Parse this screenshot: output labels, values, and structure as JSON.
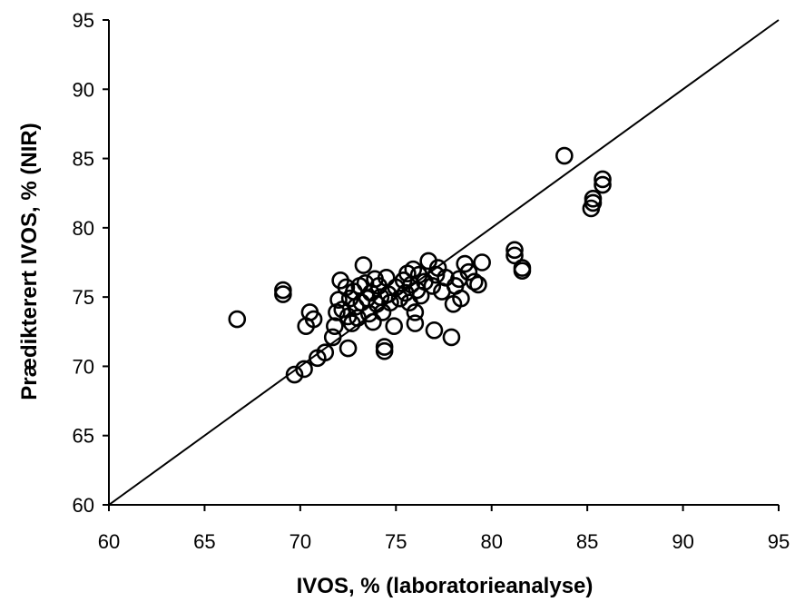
{
  "chart_data": {
    "type": "scatter",
    "title": "",
    "xlabel": "IVOS, % (laboratorieanalyse)",
    "ylabel": "Prædikterert IVOS, % (NIR)",
    "xlim": [
      60,
      95
    ],
    "ylim": [
      60,
      95
    ],
    "xticks": [
      "60",
      "65",
      "70",
      "75",
      "80",
      "85",
      "90",
      "95"
    ],
    "yticks": [
      "60",
      "65",
      "70",
      "75",
      "80",
      "85",
      "90",
      "95"
    ],
    "grid": false,
    "legend": "none",
    "reference_line": {
      "from": [
        60,
        60
      ],
      "to": [
        95,
        95
      ]
    },
    "marker": "hollow-circle",
    "colors": {
      "marker": "#000000",
      "line": "#000000",
      "axis": "#000000"
    },
    "points": [
      [
        66.7,
        73.4
      ],
      [
        69.1,
        75.5
      ],
      [
        69.1,
        75.2
      ],
      [
        69.7,
        69.4
      ],
      [
        70.2,
        69.8
      ],
      [
        70.3,
        72.9
      ],
      [
        70.5,
        73.9
      ],
      [
        70.7,
        73.4
      ],
      [
        70.9,
        70.6
      ],
      [
        71.3,
        71.0
      ],
      [
        71.7,
        72.1
      ],
      [
        71.8,
        72.9
      ],
      [
        71.9,
        73.9
      ],
      [
        72.0,
        74.8
      ],
      [
        72.1,
        76.2
      ],
      [
        72.2,
        74.1
      ],
      [
        72.4,
        75.7
      ],
      [
        72.5,
        71.3
      ],
      [
        72.5,
        73.6
      ],
      [
        72.6,
        74.9
      ],
      [
        72.7,
        73.1
      ],
      [
        72.8,
        75.4
      ],
      [
        72.9,
        74.3
      ],
      [
        73.0,
        73.5
      ],
      [
        73.1,
        75.8
      ],
      [
        73.2,
        74.6
      ],
      [
        73.3,
        77.3
      ],
      [
        73.4,
        76.0
      ],
      [
        73.5,
        74.9
      ],
      [
        73.6,
        73.8
      ],
      [
        73.7,
        75.3
      ],
      [
        73.8,
        73.2
      ],
      [
        73.9,
        76.3
      ],
      [
        74.0,
        74.5
      ],
      [
        74.1,
        75.8
      ],
      [
        74.2,
        75.0
      ],
      [
        74.3,
        73.9
      ],
      [
        74.4,
        71.4
      ],
      [
        74.4,
        71.1
      ],
      [
        74.5,
        76.4
      ],
      [
        74.6,
        75.2
      ],
      [
        74.7,
        74.6
      ],
      [
        74.9,
        72.9
      ],
      [
        75.0,
        75.7
      ],
      [
        75.2,
        74.9
      ],
      [
        75.4,
        76.2
      ],
      [
        75.5,
        75.3
      ],
      [
        75.6,
        76.7
      ],
      [
        75.7,
        74.6
      ],
      [
        75.8,
        75.9
      ],
      [
        75.9,
        77.0
      ],
      [
        76.0,
        73.9
      ],
      [
        76.0,
        73.1
      ],
      [
        76.1,
        75.5
      ],
      [
        76.2,
        76.6
      ],
      [
        76.3,
        75.1
      ],
      [
        76.5,
        76.1
      ],
      [
        76.7,
        77.6
      ],
      [
        76.9,
        75.8
      ],
      [
        77.0,
        72.6
      ],
      [
        77.1,
        76.6
      ],
      [
        77.2,
        77.1
      ],
      [
        77.4,
        75.4
      ],
      [
        77.6,
        76.4
      ],
      [
        77.9,
        72.1
      ],
      [
        78.0,
        74.5
      ],
      [
        78.1,
        75.8
      ],
      [
        78.3,
        76.3
      ],
      [
        78.4,
        74.9
      ],
      [
        78.6,
        77.4
      ],
      [
        78.8,
        76.8
      ],
      [
        79.1,
        76.1
      ],
      [
        79.3,
        75.9
      ],
      [
        79.5,
        77.5
      ],
      [
        81.2,
        78.4
      ],
      [
        81.2,
        78.0
      ],
      [
        81.6,
        77.1
      ],
      [
        81.6,
        76.9
      ],
      [
        83.8,
        85.2
      ],
      [
        85.2,
        81.4
      ],
      [
        85.3,
        81.8
      ],
      [
        85.3,
        82.1
      ],
      [
        85.8,
        83.5
      ],
      [
        85.8,
        83.1
      ]
    ]
  }
}
